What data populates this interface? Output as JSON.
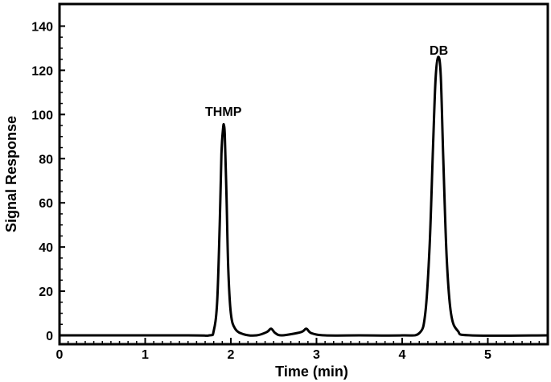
{
  "chart_data": {
    "type": "line",
    "xlabel": "Time (min)",
    "ylabel": "Signal Response",
    "xlim": [
      0,
      5.7
    ],
    "ylim": [
      -4,
      150
    ],
    "x_ticks": [
      0,
      1,
      2,
      3,
      4,
      5
    ],
    "y_ticks": [
      0,
      20,
      40,
      60,
      80,
      100,
      120,
      140
    ],
    "x_tick_labels": [
      "0",
      "1",
      "2",
      "3",
      "4",
      "5"
    ],
    "y_tick_labels": [
      "0",
      "20",
      "40",
      "60",
      "80",
      "100",
      "120",
      "140"
    ],
    "grid": false,
    "line_color": "#000000",
    "series": [
      {
        "x": [
          0,
          1.5,
          1.75,
          1.8,
          1.84,
          1.87,
          1.89,
          1.91,
          1.92,
          1.93,
          1.95,
          1.97,
          2.0,
          2.05,
          2.15,
          2.3,
          2.42,
          2.47,
          2.52,
          2.6,
          2.82,
          2.88,
          2.94,
          3.1,
          3.5,
          4.0,
          4.2,
          4.27,
          4.32,
          4.36,
          4.39,
          4.42,
          4.45,
          4.48,
          4.52,
          4.57,
          4.65,
          4.8,
          5.7
        ],
        "y": [
          0,
          0,
          0,
          2,
          15,
          50,
          82,
          94,
          95,
          90,
          62,
          30,
          10,
          3,
          0.5,
          0,
          1.5,
          3,
          1,
          0,
          1.5,
          3,
          1,
          0,
          0,
          0,
          1,
          10,
          40,
          85,
          116,
          126,
          118,
          80,
          35,
          10,
          2,
          0,
          0
        ]
      }
    ],
    "annotations": [
      {
        "text": "THMP",
        "x": 1.7,
        "y": 130
      },
      {
        "text": "DB",
        "x": 4.32,
        "y": 166
      }
    ]
  }
}
